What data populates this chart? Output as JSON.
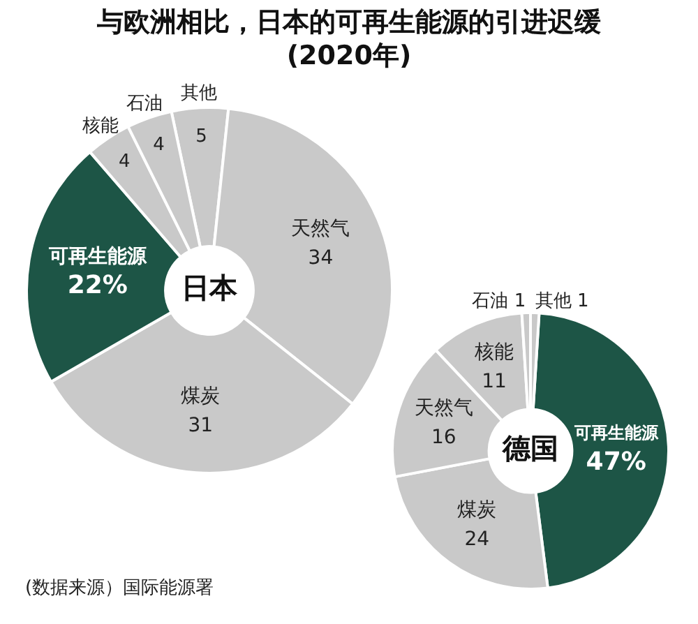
{
  "chart_data": [
    {
      "type": "donut",
      "title": "与欧洲相比，日本的可再生能源的引进迟缓\n(2020年)",
      "subtitle": "日本",
      "categories": [
        "其他",
        "天然气",
        "煤炭",
        "可再生能源",
        "核能",
        "石油"
      ],
      "values": [
        5,
        34,
        31,
        22,
        4,
        4
      ],
      "value_labels": [
        "5",
        "34",
        "31",
        "22%",
        "4",
        "4"
      ],
      "colors": [
        "#c9c9c9",
        "#c9c9c9",
        "#c9c9c9",
        "#1d5546",
        "#c9c9c9",
        "#c9c9c9"
      ],
      "legend": false
    },
    {
      "type": "donut",
      "subtitle": "德国",
      "categories": [
        "可再生能源",
        "煤炭",
        "天然气",
        "核能",
        "石油",
        "其他"
      ],
      "values": [
        47,
        24,
        16,
        11,
        1,
        1
      ],
      "value_labels": [
        "47%",
        "24",
        "16",
        "11",
        "1",
        "1"
      ],
      "colors": [
        "#1d5546",
        "#c9c9c9",
        "#c9c9c9",
        "#c9c9c9",
        "#c9c9c9",
        "#c9c9c9"
      ],
      "legend": false,
      "annotations": [
        "(数据来源）国际能源署"
      ]
    }
  ]
}
